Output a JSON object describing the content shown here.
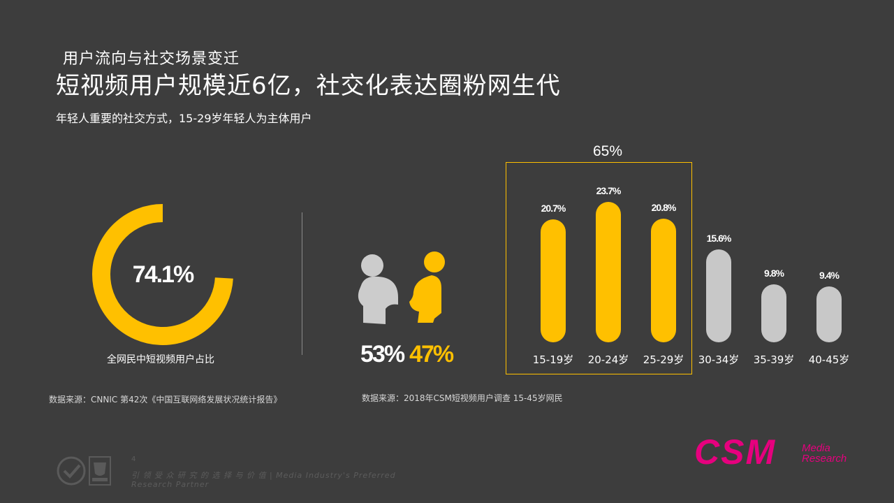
{
  "header": {
    "kicker": "用户流向与社交场景变迁",
    "title": "短视频用户规模近6亿，社交化表达圈粉网生代",
    "subtitle": "年轻人重要的社交方式，15-29岁年轻人为主体用户"
  },
  "donut": {
    "value": 74.1,
    "value_label": "74.1%",
    "label": "全网民中短视频用户占比",
    "color": "#ffc000"
  },
  "source_left": "数据来源：CNNIC 第42次《中国互联网络发展状况统计报告》",
  "gender": {
    "male_label": "53%",
    "female_label": "47%",
    "male_color": "#cccccc",
    "female_color": "#ffc000"
  },
  "source_right": "数据来源：2018年CSM短视频用户调查 15-45岁网民",
  "chart_data": {
    "type": "bar",
    "categories": [
      "15-19岁",
      "20-24岁",
      "25-29岁",
      "30-34岁",
      "35-39岁",
      "40-45岁"
    ],
    "values": [
      20.7,
      23.7,
      20.8,
      15.6,
      9.8,
      9.4
    ],
    "value_labels": [
      "20.7%",
      "23.7%",
      "20.8%",
      "15.6%",
      "9.8%",
      "9.4%"
    ],
    "highlight": {
      "count": 3,
      "label": "65%"
    },
    "colors": {
      "highlight": "#ffc000",
      "other": "#c8c8c8",
      "box": "#ffc000"
    }
  },
  "footer": {
    "page_number": "4",
    "tagline": "引 领 受 众 研 究 的 选 择 与 价 值 | Media Industry's Preferred Research Partner"
  },
  "logo": {
    "text": "CSM",
    "sub1": "Media",
    "sub2": "Research",
    "color": "#e6007e"
  }
}
